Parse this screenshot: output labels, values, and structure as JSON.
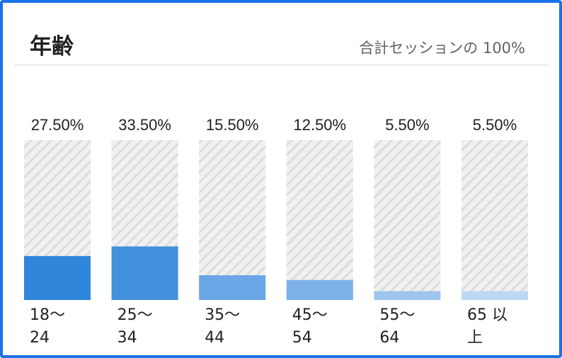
{
  "card": {
    "title": "年齢",
    "subtitle": "合計セッションの 100%"
  },
  "colors": {
    "frame": "#1a73e8",
    "bar_shades": [
      "#2f86db",
      "#4391dd",
      "#6aa6e5",
      "#7db2e9",
      "#9cc5ef",
      "#bdd8f4"
    ],
    "track_stripe": "#d5d5d5",
    "track_bg": "#f0f0f0"
  },
  "chart_data": {
    "type": "bar",
    "categories": [
      [
        "18〜",
        "24"
      ],
      [
        "25〜",
        "34"
      ],
      [
        "35〜",
        "44"
      ],
      [
        "45〜",
        "54"
      ],
      [
        "55〜",
        "64"
      ],
      [
        "65 以",
        "上"
      ]
    ],
    "value_labels": [
      "27.50%",
      "33.50%",
      "15.50%",
      "12.50%",
      "5.50%",
      "5.50%"
    ],
    "values": [
      27.5,
      33.5,
      15.5,
      12.5,
      5.5,
      5.5
    ],
    "ylim": [
      0,
      100
    ],
    "grid": false,
    "legend": "none"
  }
}
